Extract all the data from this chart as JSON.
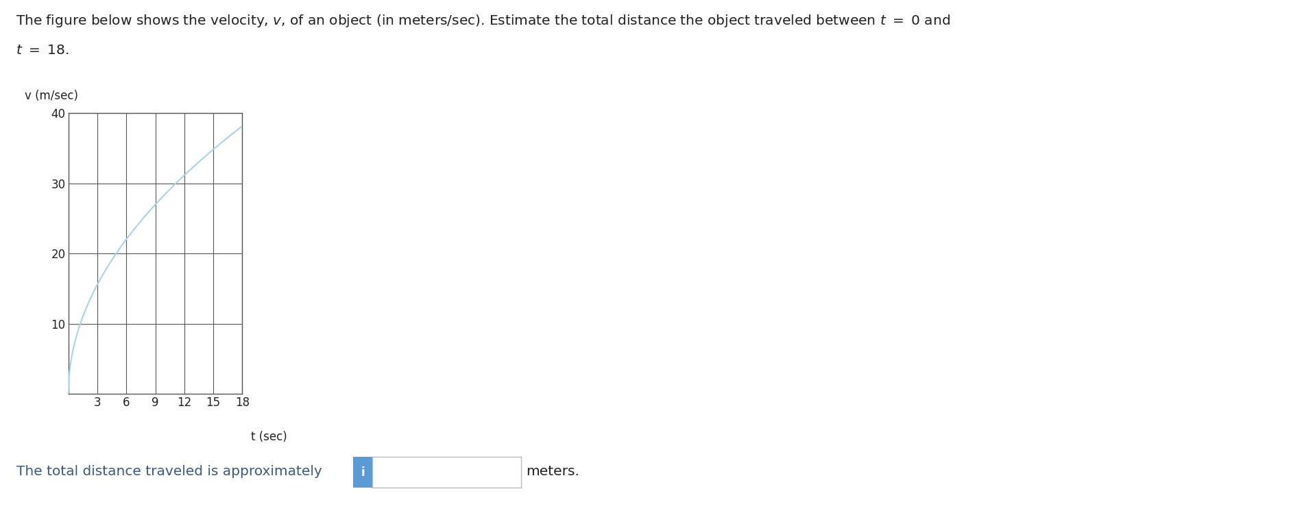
{
  "ylabel": "v (m/sec)",
  "xlabel": "t (sec)",
  "x_ticks": [
    3,
    6,
    9,
    12,
    15,
    18
  ],
  "y_ticks": [
    10,
    20,
    30,
    40
  ],
  "xlim": [
    0,
    18
  ],
  "ylim": [
    0,
    40
  ],
  "curve_color": "#a8d4e6",
  "grid_color": "#555555",
  "background": "#ffffff",
  "bottom_text": "The total distance traveled is approximately",
  "bottom_text_color": "#3d5a7a",
  "input_box_color": "#5b9bd5",
  "input_box_text": "i",
  "meters_text": "meters.",
  "fig_width": 18.8,
  "fig_height": 7.52
}
